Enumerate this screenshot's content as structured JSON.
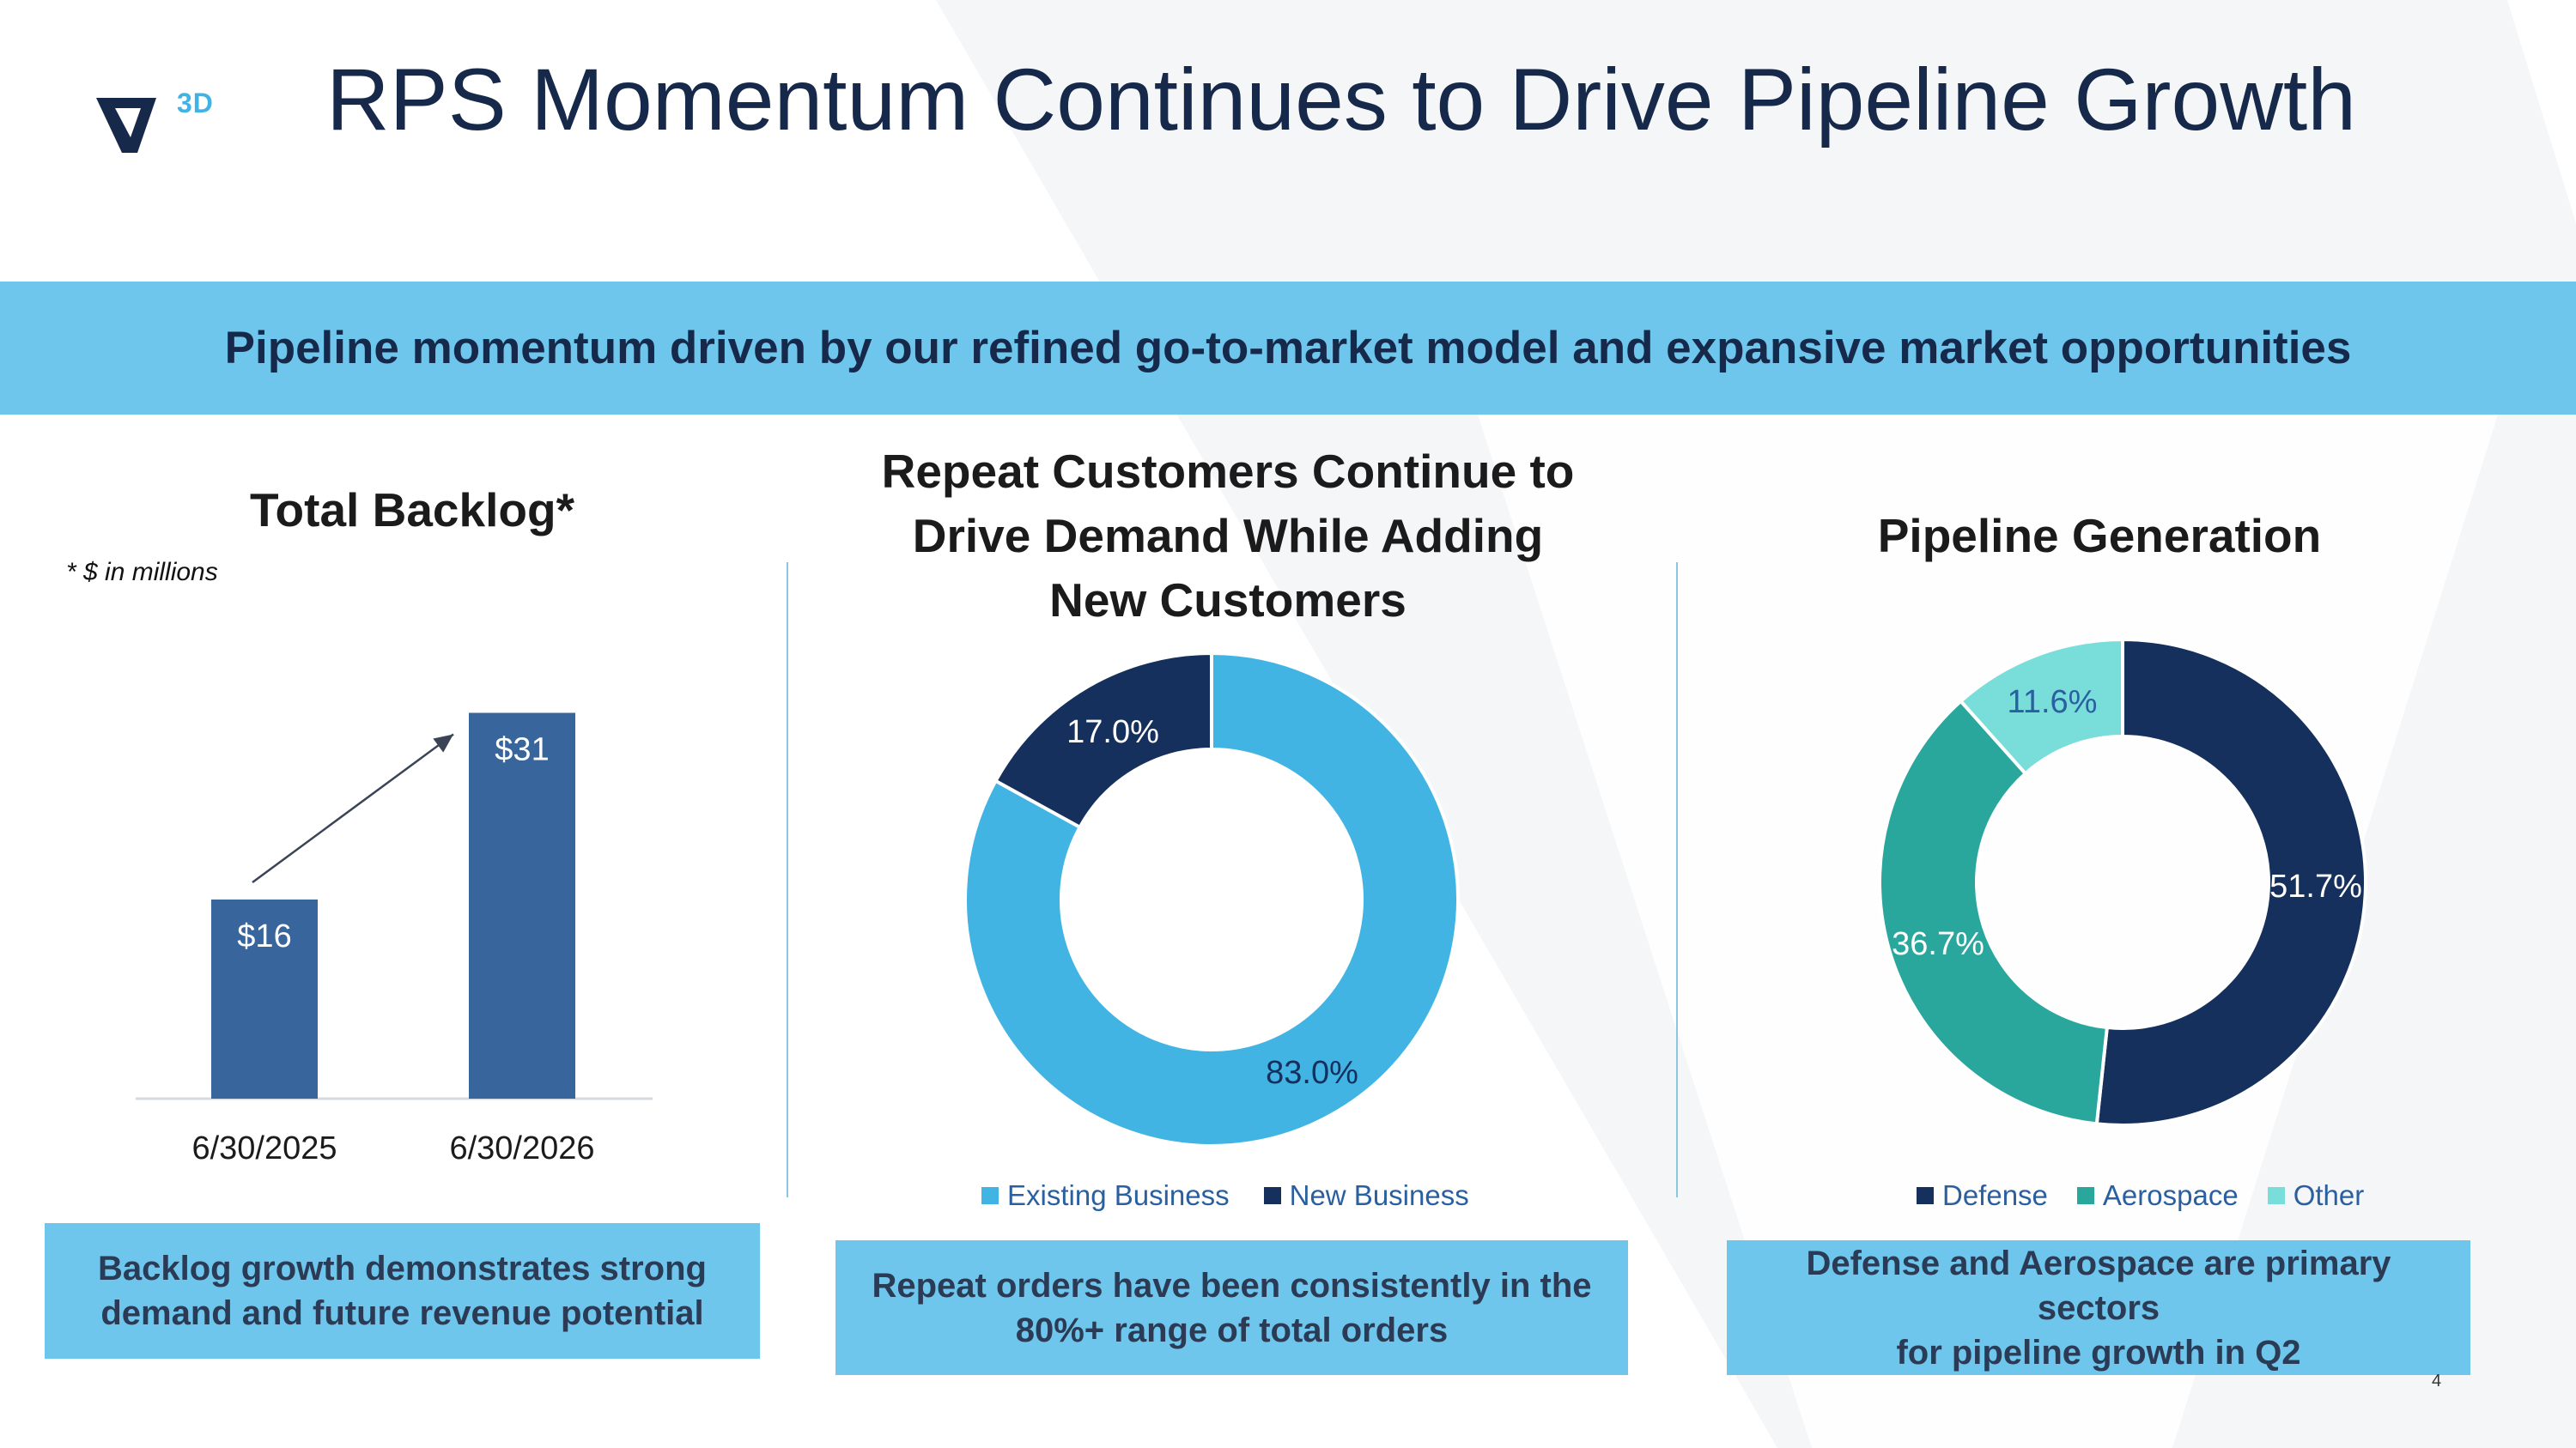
{
  "header": {
    "logo_text": "3D",
    "title": "RPS Momentum Continues to Drive Pipeline Growth"
  },
  "banner": {
    "text": "Pipeline momentum driven by our refined go-to-market model and expansive market opportunities"
  },
  "colors": {
    "navy": "#15305c",
    "bar": "#38659c",
    "light_blue": "#42b4e4",
    "teal": "#2aa79d",
    "aqua": "#79ddd9",
    "banner": "#6ec6ec"
  },
  "panels": {
    "backlog": {
      "title": "Total Backlog*",
      "note": "* $ in millions",
      "callout_line1": "Backlog growth demonstrates strong",
      "callout_line2": "demand and future revenue potential"
    },
    "repeat": {
      "title_line1": "Repeat Customers Continue to",
      "title_line2": "Drive Demand While Adding",
      "title_line3": "New Customers",
      "callout_line1": "Repeat orders have been consistently in the",
      "callout_line2": "80%+ range of total orders"
    },
    "pipeline": {
      "title": "Pipeline Generation",
      "callout_line1": "Defense and Aerospace are primary sectors",
      "callout_line2": "for pipeline growth in Q2"
    }
  },
  "chart_data": [
    {
      "type": "bar",
      "title": "Total Backlog*",
      "categories": [
        "6/30/2025",
        "6/30/2026"
      ],
      "values": [
        16,
        31
      ],
      "labels": [
        "$16",
        "$31"
      ],
      "ylim": [
        0,
        40
      ],
      "annotation": "growth arrow from first bar to second bar"
    },
    {
      "type": "pie",
      "donut": true,
      "title": "Repeat Customers Continue to Drive Demand While Adding New Customers",
      "series": [
        {
          "name": "Existing Business",
          "value": 83.0,
          "label": "83.0%",
          "color": "#42b4e4"
        },
        {
          "name": "New Business",
          "value": 17.0,
          "label": "17.0%",
          "color": "#15305c"
        }
      ],
      "legend": "bottom"
    },
    {
      "type": "pie",
      "donut": true,
      "title": "Pipeline Generation",
      "series": [
        {
          "name": "Defense",
          "value": 51.7,
          "label": "51.7%",
          "color": "#15305c"
        },
        {
          "name": "Aerospace",
          "value": 36.7,
          "label": "36.7%",
          "color": "#2aa79d"
        },
        {
          "name": "Other",
          "value": 11.6,
          "label": "11.6%",
          "color": "#79ddd9"
        }
      ],
      "legend": "bottom"
    }
  ],
  "footer": {
    "page_number": "4"
  }
}
